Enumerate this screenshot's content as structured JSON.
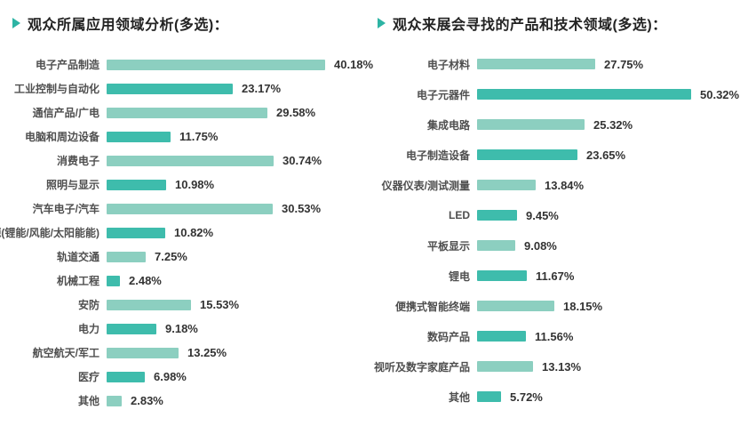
{
  "ui": {
    "background": "#ffffff",
    "accent_color": "#2db4a4",
    "bar_color_light": "#8ccfc0",
    "bar_color_dark": "#3ebcac",
    "title_color": "#232323",
    "label_color": "#4f4f4f",
    "value_color": "#333333"
  },
  "chart_data": [
    {
      "type": "bar",
      "orientation": "horizontal",
      "title": "观众所属应用领域分析(多选)：",
      "categories": [
        "电子产品制造",
        "工业控制与自动化",
        "通信产品/广电",
        "电脑和周边设备",
        "消费电子",
        "照明与显示",
        "汽车电子/汽车",
        "新能源(锂能/风能/太阳能能)",
        "轨道交通",
        "机械工程",
        "安防",
        "电力",
        "航空航天/军工",
        "医疗",
        "其他"
      ],
      "values": [
        40.18,
        23.17,
        29.58,
        11.75,
        30.74,
        10.98,
        30.53,
        10.82,
        7.25,
        2.48,
        15.53,
        9.18,
        13.25,
        6.98,
        2.83
      ],
      "value_labels": [
        "40.18%",
        "23.17%",
        "29.58%",
        "11.75%",
        "30.74%",
        "10.98%",
        "30.53%",
        "10.82%",
        "7.25%",
        "2.48%",
        "15.53%",
        "9.18%",
        "13.25%",
        "6.98%",
        "2.83%"
      ],
      "xlim": [
        0,
        45
      ],
      "grid": false,
      "legend": false,
      "bar_palette": [
        "#8ccfc0",
        "#3ebcac"
      ]
    },
    {
      "type": "bar",
      "orientation": "horizontal",
      "title": "观众来展会寻找的产品和技术领域(多选)：",
      "categories": [
        "电子材料",
        "电子元器件",
        "集成电路",
        "电子制造设备",
        "仪器仪表/测试测量",
        "LED",
        "平板显示",
        "锂电",
        "便携式智能终端",
        "数码产品",
        "视听及数字家庭产品",
        "其他"
      ],
      "values": [
        27.75,
        50.32,
        25.32,
        23.65,
        13.84,
        9.45,
        9.08,
        11.67,
        18.15,
        11.56,
        13.13,
        5.72
      ],
      "value_labels": [
        "27.75%",
        "50.32%",
        "25.32%",
        "23.65%",
        "13.84%",
        "9.45%",
        "9.08%",
        "11.67%",
        "18.15%",
        "11.56%",
        "13.13%",
        "5.72%"
      ],
      "xlim": [
        0,
        55
      ],
      "grid": false,
      "legend": false,
      "bar_palette": [
        "#8ccfc0",
        "#3ebcac"
      ]
    }
  ]
}
